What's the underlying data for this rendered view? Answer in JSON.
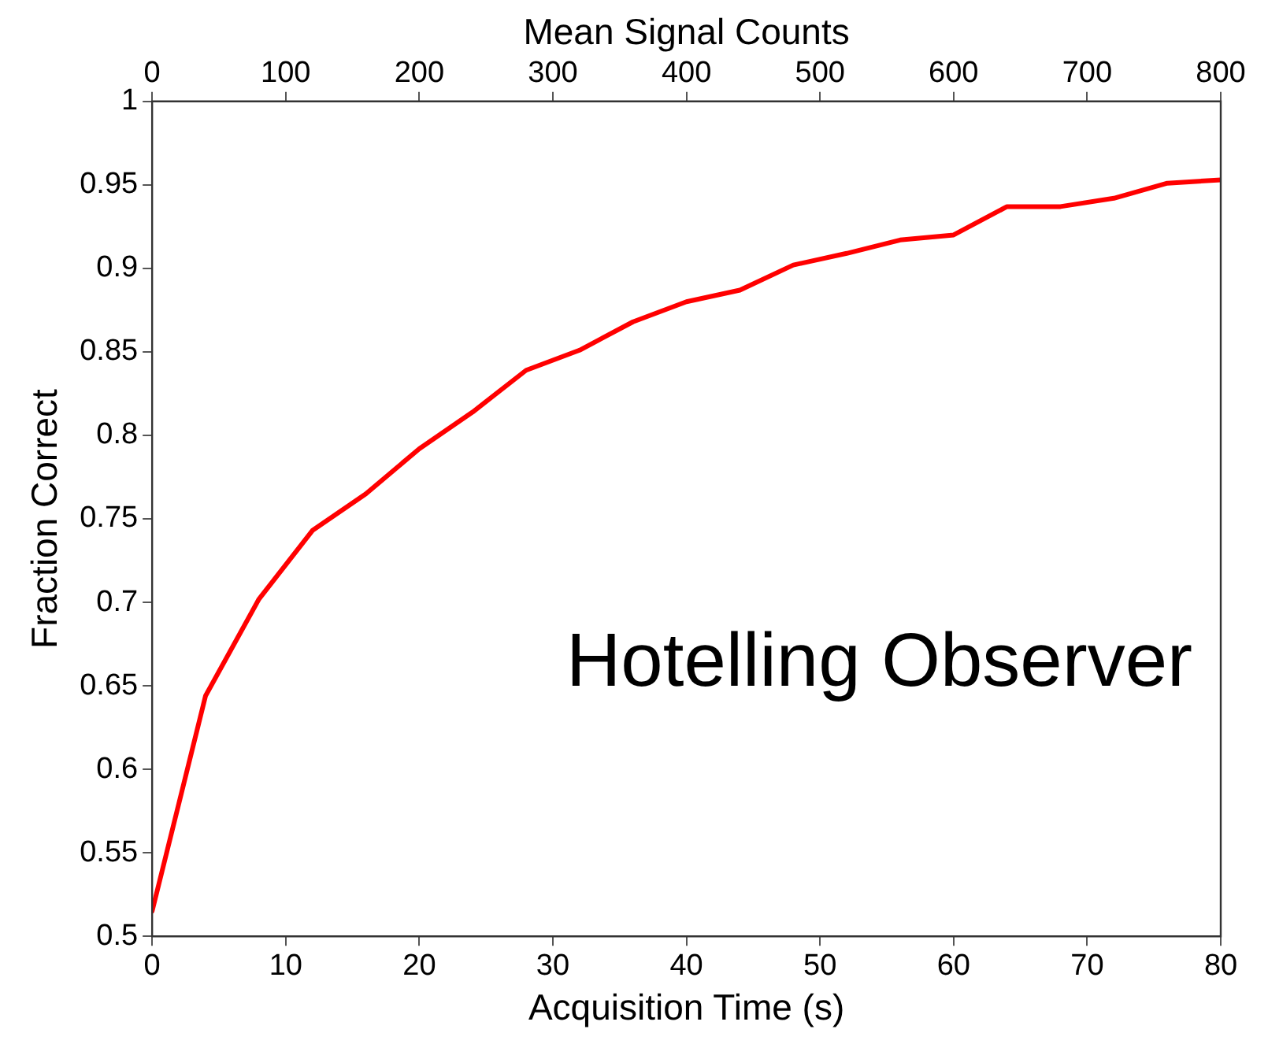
{
  "chart_data": {
    "type": "line",
    "xlabel": "Acquisition Time (s)",
    "ylabel": "Fraction Correct",
    "x2label": "Mean Signal Counts",
    "x": [
      0,
      4,
      8,
      12,
      16,
      20,
      24,
      28,
      32,
      36,
      40,
      44,
      48,
      52,
      56,
      60,
      64,
      68,
      72,
      76,
      80
    ],
    "series": [
      {
        "color": "#ff0000",
        "values": [
          0.515,
          0.644,
          0.702,
          0.743,
          0.765,
          0.792,
          0.814,
          0.839,
          0.851,
          0.868,
          0.88,
          0.887,
          0.902,
          0.909,
          0.917,
          0.92,
          0.937,
          0.937,
          0.942,
          0.951,
          0.953
        ]
      }
    ],
    "xlim": [
      0,
      80
    ],
    "xticks": [
      0,
      10,
      20,
      30,
      40,
      50,
      60,
      70,
      80
    ],
    "x2lim": [
      0,
      800
    ],
    "x2ticks": [
      0,
      100,
      200,
      300,
      400,
      500,
      600,
      700,
      800
    ],
    "ylim": [
      0.5,
      1
    ],
    "yticks": [
      0.5,
      0.55,
      0.6,
      0.65,
      0.7,
      0.75,
      0.8,
      0.85,
      0.9,
      0.95,
      1
    ],
    "grid": false,
    "legend": false,
    "marker": "none",
    "line_style": "solid",
    "annotations": [
      "Hotelling Observer"
    ]
  }
}
